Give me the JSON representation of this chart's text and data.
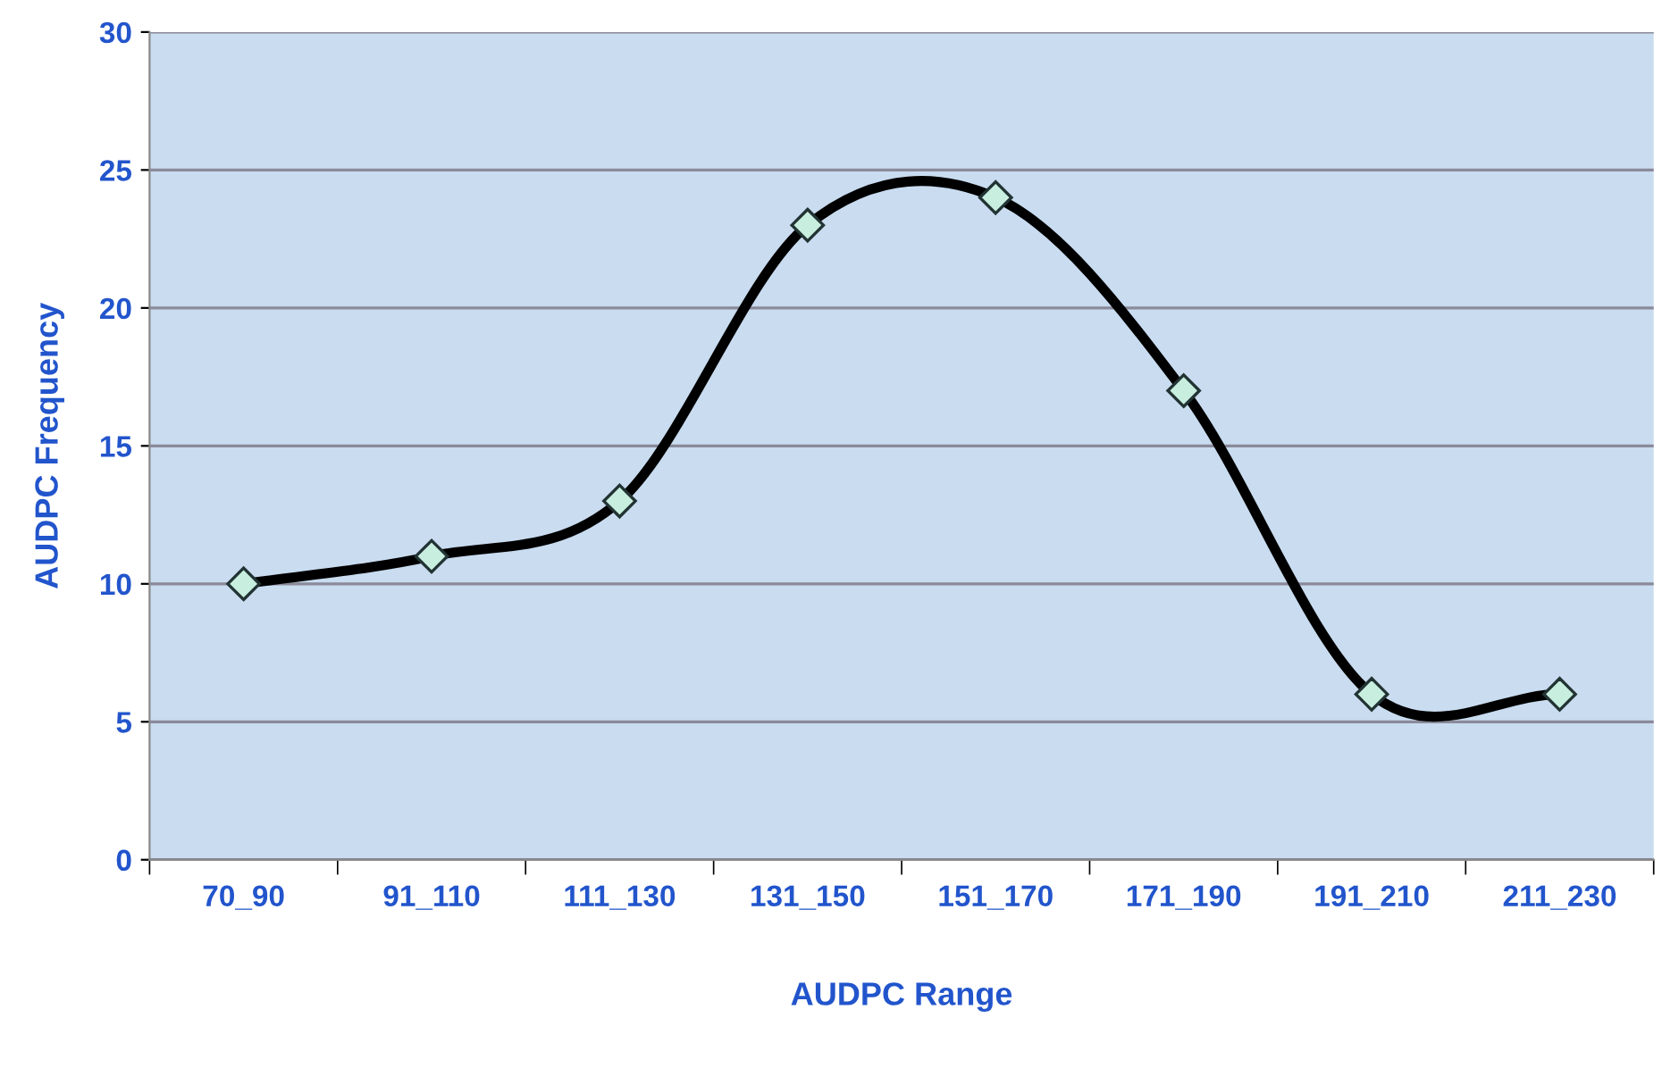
{
  "chart_data": {
    "type": "line",
    "xlabel": "AUDPC Range",
    "ylabel": "AUDPC Frequency",
    "categories": [
      "70_90",
      "91_110",
      "111_130",
      "131_150",
      "151_170",
      "171_190",
      "191_210",
      "211_230"
    ],
    "series": [
      {
        "color": "#000000",
        "values": [
          10,
          11,
          13,
          23,
          24,
          17,
          6,
          6
        ]
      }
    ],
    "ylim": [
      0,
      30
    ],
    "yticks": [
      0,
      5,
      10,
      15,
      20,
      25,
      30
    ],
    "grid": "y",
    "marker": "diamond",
    "line_style": "solid"
  }
}
